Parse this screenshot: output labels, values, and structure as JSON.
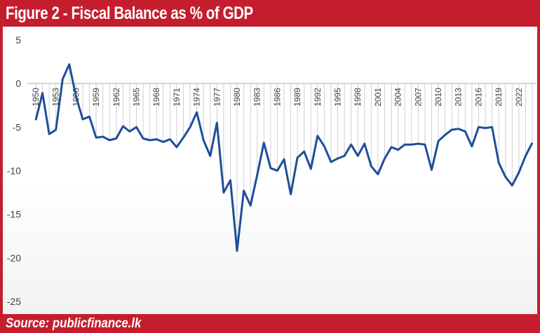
{
  "header": {
    "title": "Figure 2 - Fiscal Balance as % of GDP"
  },
  "footer": {
    "source": "Source: publicfinance.lk"
  },
  "colors": {
    "brand_red": "#c41e2e",
    "line": "#1f4e99",
    "dropline": "#d0d0d0"
  },
  "chart_data": {
    "type": "line",
    "title": "Figure 2 - Fiscal Balance as % of GDP",
    "xlabel": "",
    "ylabel": "",
    "ylim": [
      -25,
      5
    ],
    "yticks": [
      5,
      0,
      -5,
      -10,
      -15,
      -20,
      -25
    ],
    "xtick_labels": [
      "1950",
      "1953",
      "1956",
      "1959",
      "1962",
      "1965",
      "1968",
      "1971",
      "1974",
      "1977",
      "1980",
      "1983",
      "1986",
      "1989",
      "1992",
      "1995",
      "1998",
      "2001",
      "2004",
      "2007",
      "2010",
      "2013",
      "2016",
      "2019",
      "2022"
    ],
    "legend": "none",
    "grid": "drop lines",
    "x": [
      1950,
      1951,
      1952,
      1953,
      1954,
      1955,
      1956,
      1957,
      1958,
      1959,
      1960,
      1961,
      1962,
      1963,
      1964,
      1965,
      1966,
      1967,
      1968,
      1969,
      1970,
      1971,
      1972,
      1973,
      1974,
      1975,
      1976,
      1977,
      1978,
      1979,
      1980,
      1981,
      1982,
      1983,
      1984,
      1985,
      1986,
      1987,
      1988,
      1989,
      1990,
      1991,
      1992,
      1993,
      1994,
      1995,
      1996,
      1997,
      1998,
      1999,
      2000,
      2001,
      2002,
      2003,
      2004,
      2005,
      2006,
      2007,
      2008,
      2009,
      2010,
      2011,
      2012,
      2013,
      2014,
      2015,
      2016,
      2017,
      2018,
      2019,
      2020,
      2021,
      2022,
      2023,
      2024
    ],
    "series": [
      {
        "name": "Fiscal Balance (% of GDP)",
        "values": [
          -4.2,
          -1.1,
          -5.8,
          -5.3,
          0.5,
          2.2,
          -1.5,
          -4.1,
          -3.8,
          -6.2,
          -6.1,
          -6.5,
          -6.3,
          -4.9,
          -5.5,
          -5.0,
          -6.3,
          -6.5,
          -6.4,
          -6.7,
          -6.4,
          -7.3,
          -6.2,
          -5.0,
          -3.3,
          -6.5,
          -8.3,
          -4.5,
          -12.5,
          -11.1,
          -19.2,
          -12.3,
          -14.0,
          -10.5,
          -6.8,
          -9.7,
          -10.0,
          -8.7,
          -12.7,
          -8.5,
          -7.8,
          -9.8,
          -6.0,
          -7.2,
          -9.0,
          -8.6,
          -8.3,
          -7.0,
          -8.3,
          -6.9,
          -9.5,
          -10.4,
          -8.6,
          -7.3,
          -7.6,
          -7.0,
          -7.0,
          -6.9,
          -7.0,
          -9.9,
          -6.6,
          -5.9,
          -5.3,
          -5.2,
          -5.5,
          -7.2,
          -5.0,
          -5.1,
          -5.0,
          -9.1,
          -10.7,
          -11.7,
          -10.2,
          -8.3,
          -6.8
        ]
      }
    ]
  }
}
